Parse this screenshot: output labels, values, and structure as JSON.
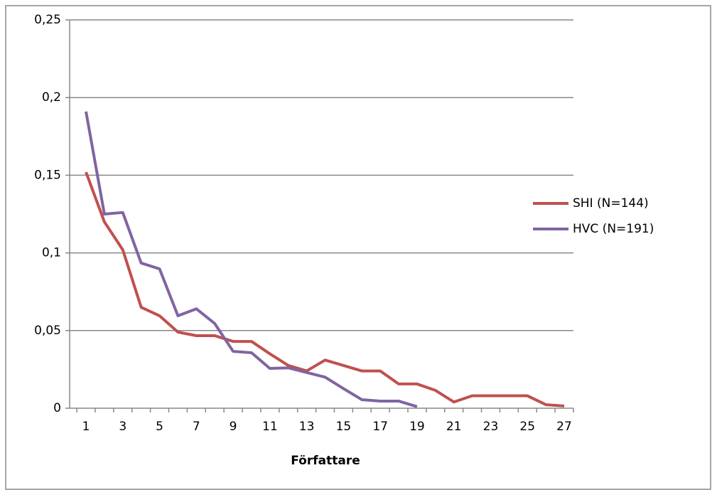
{
  "chart_data": {
    "type": "line",
    "x_label": "Författare",
    "categories": [
      "1",
      null,
      "3",
      null,
      "5",
      null,
      "7",
      null,
      "9",
      null,
      "11",
      null,
      "13",
      null,
      "15",
      null,
      "17",
      null,
      "19",
      null,
      "21",
      null,
      "23",
      null,
      "25",
      null,
      "27"
    ],
    "series": [
      {
        "name": "SHI (N=144)",
        "color": "#c0504d",
        "values": [
          0.152,
          0.12,
          0.102,
          0.065,
          0.0595,
          0.049,
          0.0467,
          0.0467,
          0.043,
          0.043,
          0.035,
          0.0275,
          0.024,
          0.031,
          0.0275,
          0.024,
          0.024,
          0.0156,
          0.0156,
          0.0115,
          0.004,
          0.008,
          0.008,
          0.008,
          0.008,
          0.0023,
          0.0014
        ]
      },
      {
        "name": "HVC (N=191)",
        "color": "#8064a2",
        "values": [
          0.191,
          0.125,
          0.126,
          0.0935,
          0.0897,
          0.0595,
          0.064,
          0.0545,
          0.0366,
          0.0357,
          0.0256,
          0.026,
          0.023,
          0.02,
          0.0126,
          0.0055,
          0.0046,
          0.0046,
          0.001,
          null,
          null,
          null,
          null,
          null,
          null,
          null,
          null
        ]
      }
    ],
    "ylim": [
      0,
      0.25
    ],
    "yticks": [
      0,
      {
        "value": 0.05,
        "label": "0,05"
      },
      {
        "value": 0.1,
        "label": "0,1"
      },
      {
        "value": 0.15,
        "label": "0,15"
      },
      {
        "value": 0.2,
        "label": "0,2"
      },
      {
        "value": 0.25,
        "label": "0,25"
      }
    ],
    "grid": true,
    "legend": "right"
  }
}
